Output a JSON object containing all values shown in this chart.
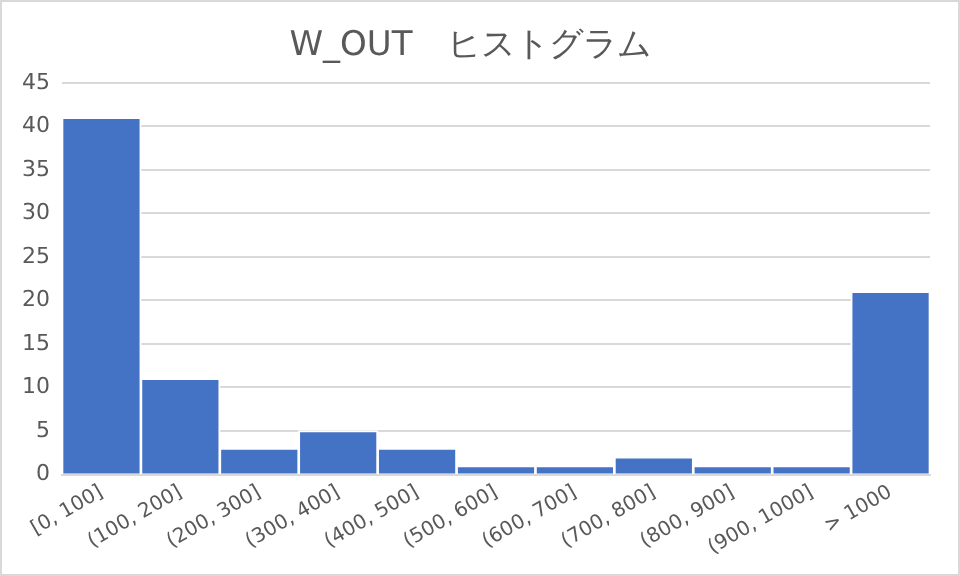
{
  "chart_data": {
    "type": "bar",
    "title": "W_OUT　ヒストグラム",
    "categories": [
      "[0, 100]",
      "(100, 200]",
      "(200, 300]",
      "(300, 400]",
      "(400, 500]",
      "(500, 600]",
      "(600, 700]",
      "(700, 800]",
      "(800, 900]",
      "(900, 1000]",
      "> 1000"
    ],
    "values": [
      41,
      11,
      3,
      5,
      3,
      1,
      1,
      2,
      1,
      1,
      21
    ],
    "color": "#4472c4",
    "ylim": [
      0,
      45
    ],
    "yticks": [
      0,
      5,
      10,
      15,
      20,
      25,
      30,
      35,
      40,
      45
    ],
    "grid": "y"
  }
}
